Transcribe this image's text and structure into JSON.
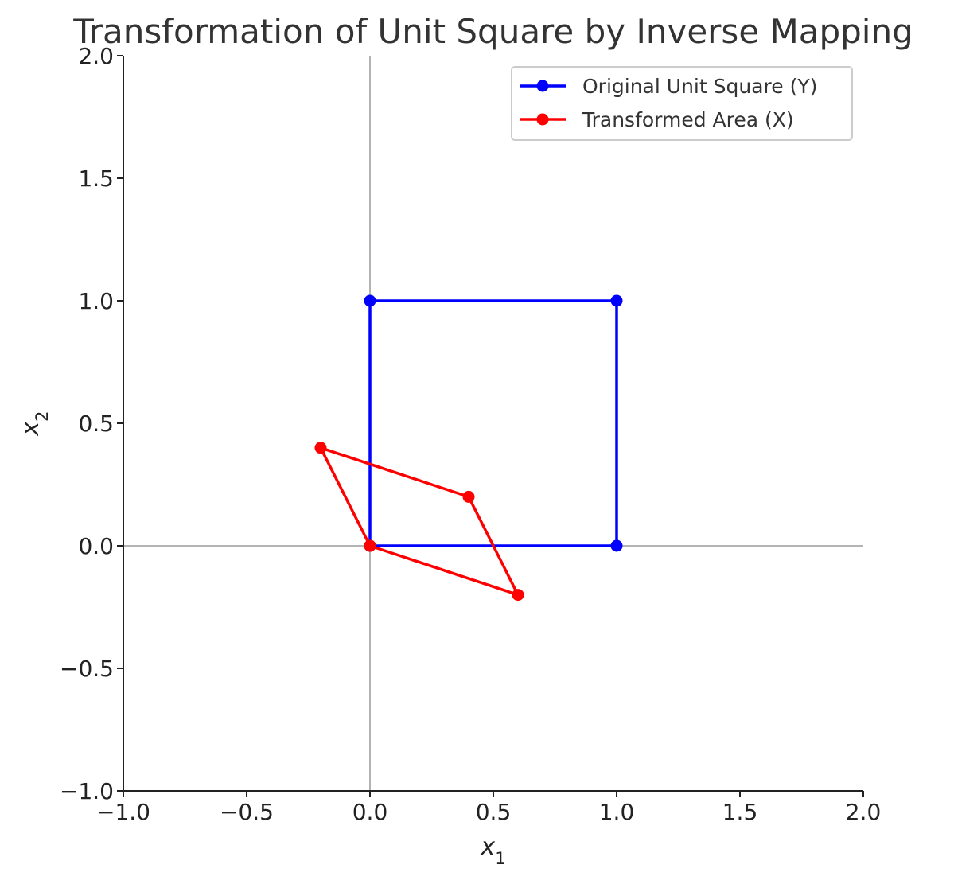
{
  "chart_data": {
    "type": "line",
    "title": "Transformation of Unit Square by Inverse Mapping",
    "xlabel": "x1",
    "ylabel": "x2",
    "xlim": [
      -1.0,
      2.0
    ],
    "ylim": [
      -1.0,
      2.0
    ],
    "xticks": [
      "−1.0",
      "−0.5",
      "0.0",
      "0.5",
      "1.0",
      "1.5",
      "2.0"
    ],
    "yticks": [
      "−1.0",
      "−0.5",
      "0.0",
      "0.5",
      "1.0",
      "1.5",
      "2.0"
    ],
    "grid": false,
    "zero_lines": true,
    "legend_position": "top-right",
    "series": [
      {
        "name": "Original Unit Square (Y)",
        "color": "#0000ff",
        "x": [
          0,
          1,
          1,
          0,
          0
        ],
        "y": [
          0,
          0,
          1,
          1,
          0
        ]
      },
      {
        "name": "Transformed Area (X)",
        "color": "#ff0000",
        "x": [
          0,
          0.6,
          0.4,
          -0.2,
          0
        ],
        "y": [
          0,
          -0.2,
          0.2,
          0.4,
          0
        ]
      }
    ]
  }
}
